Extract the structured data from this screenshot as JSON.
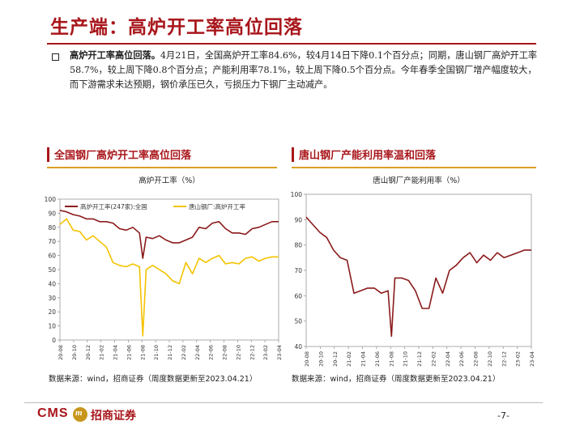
{
  "page": {
    "title": "生产端：高炉开工率高位回落",
    "paragraph_lead": "高炉开工率高位回落。",
    "paragraph_body": "4月21日，全国高炉开工率84.6%，较4月14日下降0.1个百分点；同期，唐山钢厂高炉开工率58.7%，较上周下降0.8个百分点；产能利用率78.1%，较上周下降0.5个百分点。今年春季全国钢厂增产幅度较大，而下游需求未达预期，钢价承压已久，亏损压力下钢厂主动减产。",
    "left_header": "全国钢厂高炉开工率高位回落",
    "right_header": "唐山钢厂产能利用率温和回落",
    "left_source": "数据来源：wind，招商证券（周度数据更新至2023.04.21）",
    "right_source": "数据来源：wind，招商证券（周度数据更新至2023.04.21）",
    "logo_cms": "CMS",
    "logo_coin": "m",
    "logo_cn": "招商证券",
    "page_number": "-7-",
    "colors": {
      "brand_red": "#a8161b",
      "gold": "#d9a020",
      "national_series": "#8b1a1a",
      "tangshan_series": "#f5c200"
    }
  },
  "chart_data": [
    {
      "type": "line",
      "title": "高炉开工率（%）",
      "xlabel": "",
      "ylabel": "",
      "ylim": [
        0,
        100
      ],
      "yticks": [
        0,
        10,
        20,
        30,
        40,
        50,
        60,
        70,
        80,
        90,
        100
      ],
      "xtick_labels": [
        "20-08",
        "20-10",
        "20-12",
        "21-02",
        "21-04",
        "21-06",
        "21-08",
        "21-10",
        "21-12",
        "22-02",
        "22-04",
        "22-06",
        "22-08",
        "22-10",
        "22-12",
        "23-02",
        "23-04"
      ],
      "x_range": [
        0,
        33
      ],
      "legend_position": "top",
      "series": [
        {
          "name": "高炉开工率(247家):全国",
          "color": "#8b1a1a",
          "x": [
            0,
            1,
            2,
            3,
            4,
            5,
            6,
            7,
            8,
            9,
            10,
            11,
            12,
            12.5,
            13,
            14,
            15,
            16,
            17,
            18,
            19,
            20,
            21,
            22,
            23,
            24,
            25,
            26,
            27,
            28,
            29,
            30,
            31,
            32,
            33
          ],
          "values": [
            92,
            91,
            89,
            88,
            86,
            86,
            84,
            84,
            83,
            79,
            78,
            80,
            76,
            58,
            73,
            72,
            74,
            71,
            69,
            69,
            71,
            73,
            80,
            79,
            83,
            84,
            79,
            76,
            76,
            75,
            79,
            80,
            82,
            84,
            84
          ]
        },
        {
          "name": "唐山钢厂:高炉开工率",
          "color": "#f5c200",
          "x": [
            0,
            1,
            2,
            3,
            4,
            5,
            6,
            7,
            8,
            9,
            10,
            11,
            12,
            12.5,
            13,
            14,
            15,
            16,
            17,
            18,
            19,
            20,
            21,
            22,
            23,
            24,
            25,
            26,
            27,
            28,
            29,
            30,
            31,
            32,
            33
          ],
          "values": [
            82,
            86,
            78,
            77,
            71,
            74,
            70,
            66,
            55,
            53,
            52,
            54,
            52,
            3,
            50,
            53,
            50,
            47,
            42,
            40,
            55,
            47,
            58,
            55,
            58,
            60,
            54,
            55,
            54,
            58,
            59,
            56,
            58,
            59,
            59
          ]
        }
      ]
    },
    {
      "type": "line",
      "title": "唐山钢厂产能利用率（%）",
      "xlabel": "",
      "ylabel": "",
      "ylim": [
        40,
        100
      ],
      "yticks": [
        40,
        50,
        60,
        70,
        80,
        90,
        100
      ],
      "xtick_labels": [
        "20-08",
        "20-10",
        "20-12",
        "21-02",
        "21-04",
        "21-06",
        "21-08",
        "21-10",
        "21-12",
        "22-02",
        "22-04",
        "22-06",
        "22-08",
        "22-10",
        "22-12",
        "23-02",
        "23-04"
      ],
      "x_range": [
        0,
        33
      ],
      "legend_position": "none",
      "series": [
        {
          "name": "唐山钢厂产能利用率",
          "color": "#8b1a1a",
          "x": [
            0,
            1,
            2,
            3,
            4,
            5,
            6,
            7,
            8,
            9,
            10,
            11,
            12,
            12.5,
            13,
            14,
            15,
            16,
            17,
            18,
            19,
            20,
            21,
            22,
            23,
            24,
            25,
            26,
            27,
            28,
            29,
            30,
            31,
            32,
            33
          ],
          "values": [
            91,
            88,
            85,
            83,
            78,
            75,
            74,
            61,
            62,
            63,
            63,
            61,
            62,
            44,
            67,
            67,
            66,
            62,
            55,
            55,
            67,
            61,
            70,
            72,
            75,
            77,
            73,
            76,
            74,
            77,
            75,
            76,
            77,
            78,
            78
          ]
        }
      ]
    }
  ]
}
